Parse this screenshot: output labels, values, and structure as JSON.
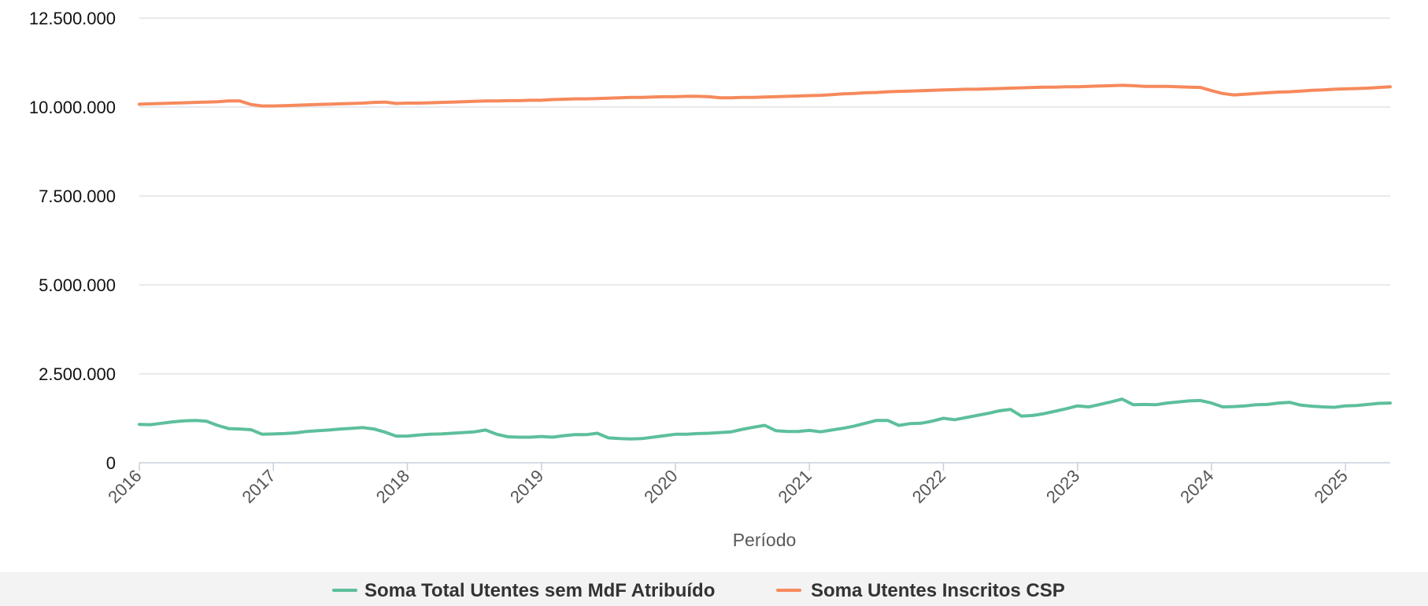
{
  "chart_data": {
    "type": "line",
    "title": "",
    "xlabel": "Período",
    "ylabel": "",
    "x_start": "2016-01",
    "x_end": "2025-05",
    "x_tick_labels": [
      "2016",
      "2017",
      "2018",
      "2019",
      "2020",
      "2021",
      "2022",
      "2023",
      "2024",
      "2025"
    ],
    "ylim": [
      0,
      12500000
    ],
    "y_tick_values": [
      0,
      2500000,
      5000000,
      7500000,
      10000000,
      12500000
    ],
    "y_tick_labels": [
      "0",
      "2.500.000",
      "5.000.000",
      "7.500.000",
      "10.000.000",
      "12.500.000"
    ],
    "grid": true,
    "legend_position": "bottom-center",
    "series": [
      {
        "name": "Soma Total Utentes sem MdF Atribuído",
        "color": "#5dbf9b",
        "points": [
          [
            "2016-01",
            1080000
          ],
          [
            "2016-02",
            1070000
          ],
          [
            "2016-03",
            1110000
          ],
          [
            "2016-04",
            1150000
          ],
          [
            "2016-05",
            1180000
          ],
          [
            "2016-06",
            1190000
          ],
          [
            "2016-07",
            1170000
          ],
          [
            "2016-08",
            1050000
          ],
          [
            "2016-09",
            960000
          ],
          [
            "2016-10",
            950000
          ],
          [
            "2016-11",
            930000
          ],
          [
            "2016-12",
            800000
          ],
          [
            "2017-01",
            810000
          ],
          [
            "2017-02",
            820000
          ],
          [
            "2017-03",
            840000
          ],
          [
            "2017-04",
            880000
          ],
          [
            "2017-05",
            900000
          ],
          [
            "2017-06",
            920000
          ],
          [
            "2017-07",
            950000
          ],
          [
            "2017-08",
            970000
          ],
          [
            "2017-09",
            990000
          ],
          [
            "2017-10",
            950000
          ],
          [
            "2017-11",
            860000
          ],
          [
            "2017-12",
            750000
          ],
          [
            "2018-01",
            750000
          ],
          [
            "2018-02",
            780000
          ],
          [
            "2018-03",
            800000
          ],
          [
            "2018-04",
            810000
          ],
          [
            "2018-05",
            830000
          ],
          [
            "2018-06",
            850000
          ],
          [
            "2018-07",
            870000
          ],
          [
            "2018-08",
            920000
          ],
          [
            "2018-09",
            800000
          ],
          [
            "2018-10",
            730000
          ],
          [
            "2018-11",
            720000
          ],
          [
            "2018-12",
            720000
          ],
          [
            "2019-01",
            740000
          ],
          [
            "2019-02",
            720000
          ],
          [
            "2019-03",
            760000
          ],
          [
            "2019-04",
            790000
          ],
          [
            "2019-05",
            790000
          ],
          [
            "2019-06",
            830000
          ],
          [
            "2019-07",
            700000
          ],
          [
            "2019-08",
            680000
          ],
          [
            "2019-09",
            670000
          ],
          [
            "2019-10",
            680000
          ],
          [
            "2019-11",
            720000
          ],
          [
            "2019-12",
            760000
          ],
          [
            "2020-01",
            800000
          ],
          [
            "2020-02",
            800000
          ],
          [
            "2020-03",
            820000
          ],
          [
            "2020-04",
            830000
          ],
          [
            "2020-05",
            850000
          ],
          [
            "2020-06",
            870000
          ],
          [
            "2020-07",
            940000
          ],
          [
            "2020-08",
            1000000
          ],
          [
            "2020-09",
            1050000
          ],
          [
            "2020-10",
            900000
          ],
          [
            "2020-11",
            880000
          ],
          [
            "2020-12",
            880000
          ],
          [
            "2021-01",
            910000
          ],
          [
            "2021-02",
            870000
          ],
          [
            "2021-03",
            920000
          ],
          [
            "2021-04",
            970000
          ],
          [
            "2021-05",
            1030000
          ],
          [
            "2021-06",
            1110000
          ],
          [
            "2021-07",
            1190000
          ],
          [
            "2021-08",
            1190000
          ],
          [
            "2021-09",
            1050000
          ],
          [
            "2021-10",
            1100000
          ],
          [
            "2021-11",
            1110000
          ],
          [
            "2021-12",
            1170000
          ],
          [
            "2022-01",
            1250000
          ],
          [
            "2022-02",
            1210000
          ],
          [
            "2022-03",
            1270000
          ],
          [
            "2022-04",
            1330000
          ],
          [
            "2022-05",
            1390000
          ],
          [
            "2022-06",
            1460000
          ],
          [
            "2022-07",
            1500000
          ],
          [
            "2022-08",
            1310000
          ],
          [
            "2022-09",
            1330000
          ],
          [
            "2022-10",
            1380000
          ],
          [
            "2022-11",
            1450000
          ],
          [
            "2022-12",
            1520000
          ],
          [
            "2023-01",
            1600000
          ],
          [
            "2023-02",
            1570000
          ],
          [
            "2023-03",
            1640000
          ],
          [
            "2023-04",
            1710000
          ],
          [
            "2023-05",
            1790000
          ],
          [
            "2023-06",
            1630000
          ],
          [
            "2023-07",
            1640000
          ],
          [
            "2023-08",
            1630000
          ],
          [
            "2023-09",
            1680000
          ],
          [
            "2023-10",
            1710000
          ],
          [
            "2023-11",
            1740000
          ],
          [
            "2023-12",
            1750000
          ],
          [
            "2024-01",
            1680000
          ],
          [
            "2024-02",
            1570000
          ],
          [
            "2024-03",
            1580000
          ],
          [
            "2024-04",
            1600000
          ],
          [
            "2024-05",
            1630000
          ],
          [
            "2024-06",
            1640000
          ],
          [
            "2024-07",
            1680000
          ],
          [
            "2024-08",
            1700000
          ],
          [
            "2024-09",
            1620000
          ],
          [
            "2024-10",
            1590000
          ],
          [
            "2024-11",
            1570000
          ],
          [
            "2024-12",
            1560000
          ],
          [
            "2025-01",
            1600000
          ],
          [
            "2025-02",
            1610000
          ],
          [
            "2025-03",
            1640000
          ],
          [
            "2025-04",
            1670000
          ],
          [
            "2025-05",
            1680000
          ]
        ]
      },
      {
        "name": "Soma Utentes Inscritos CSP",
        "color": "#f6895c",
        "points": [
          [
            "2016-01",
            10080000
          ],
          [
            "2016-02",
            10090000
          ],
          [
            "2016-03",
            10100000
          ],
          [
            "2016-04",
            10110000
          ],
          [
            "2016-05",
            10120000
          ],
          [
            "2016-06",
            10130000
          ],
          [
            "2016-07",
            10140000
          ],
          [
            "2016-08",
            10150000
          ],
          [
            "2016-09",
            10170000
          ],
          [
            "2016-10",
            10170000
          ],
          [
            "2016-11",
            10070000
          ],
          [
            "2016-12",
            10030000
          ],
          [
            "2017-01",
            10030000
          ],
          [
            "2017-02",
            10040000
          ],
          [
            "2017-03",
            10050000
          ],
          [
            "2017-04",
            10060000
          ],
          [
            "2017-05",
            10070000
          ],
          [
            "2017-06",
            10080000
          ],
          [
            "2017-07",
            10090000
          ],
          [
            "2017-08",
            10100000
          ],
          [
            "2017-09",
            10110000
          ],
          [
            "2017-10",
            10130000
          ],
          [
            "2017-11",
            10140000
          ],
          [
            "2017-12",
            10100000
          ],
          [
            "2018-01",
            10110000
          ],
          [
            "2018-02",
            10110000
          ],
          [
            "2018-03",
            10120000
          ],
          [
            "2018-04",
            10130000
          ],
          [
            "2018-05",
            10140000
          ],
          [
            "2018-06",
            10150000
          ],
          [
            "2018-07",
            10160000
          ],
          [
            "2018-08",
            10170000
          ],
          [
            "2018-09",
            10170000
          ],
          [
            "2018-10",
            10180000
          ],
          [
            "2018-11",
            10180000
          ],
          [
            "2018-12",
            10190000
          ],
          [
            "2019-01",
            10190000
          ],
          [
            "2019-02",
            10210000
          ],
          [
            "2019-03",
            10220000
          ],
          [
            "2019-04",
            10230000
          ],
          [
            "2019-05",
            10230000
          ],
          [
            "2019-06",
            10240000
          ],
          [
            "2019-07",
            10250000
          ],
          [
            "2019-08",
            10260000
          ],
          [
            "2019-09",
            10270000
          ],
          [
            "2019-10",
            10270000
          ],
          [
            "2019-11",
            10280000
          ],
          [
            "2019-12",
            10290000
          ],
          [
            "2020-01",
            10290000
          ],
          [
            "2020-02",
            10300000
          ],
          [
            "2020-03",
            10300000
          ],
          [
            "2020-04",
            10290000
          ],
          [
            "2020-05",
            10260000
          ],
          [
            "2020-06",
            10260000
          ],
          [
            "2020-07",
            10270000
          ],
          [
            "2020-08",
            10270000
          ],
          [
            "2020-09",
            10280000
          ],
          [
            "2020-10",
            10290000
          ],
          [
            "2020-11",
            10300000
          ],
          [
            "2020-12",
            10310000
          ],
          [
            "2021-01",
            10320000
          ],
          [
            "2021-02",
            10330000
          ],
          [
            "2021-03",
            10350000
          ],
          [
            "2021-04",
            10370000
          ],
          [
            "2021-05",
            10380000
          ],
          [
            "2021-06",
            10400000
          ],
          [
            "2021-07",
            10410000
          ],
          [
            "2021-08",
            10430000
          ],
          [
            "2021-09",
            10440000
          ],
          [
            "2021-10",
            10450000
          ],
          [
            "2021-11",
            10460000
          ],
          [
            "2021-12",
            10470000
          ],
          [
            "2022-01",
            10480000
          ],
          [
            "2022-02",
            10490000
          ],
          [
            "2022-03",
            10500000
          ],
          [
            "2022-04",
            10500000
          ],
          [
            "2022-05",
            10510000
          ],
          [
            "2022-06",
            10520000
          ],
          [
            "2022-07",
            10530000
          ],
          [
            "2022-08",
            10540000
          ],
          [
            "2022-09",
            10550000
          ],
          [
            "2022-10",
            10560000
          ],
          [
            "2022-11",
            10560000
          ],
          [
            "2022-12",
            10570000
          ],
          [
            "2023-01",
            10570000
          ],
          [
            "2023-02",
            10580000
          ],
          [
            "2023-03",
            10590000
          ],
          [
            "2023-04",
            10600000
          ],
          [
            "2023-05",
            10610000
          ],
          [
            "2023-06",
            10600000
          ],
          [
            "2023-07",
            10580000
          ],
          [
            "2023-08",
            10580000
          ],
          [
            "2023-09",
            10580000
          ],
          [
            "2023-10",
            10570000
          ],
          [
            "2023-11",
            10560000
          ],
          [
            "2023-12",
            10550000
          ],
          [
            "2024-01",
            10460000
          ],
          [
            "2024-02",
            10380000
          ],
          [
            "2024-03",
            10340000
          ],
          [
            "2024-04",
            10360000
          ],
          [
            "2024-05",
            10380000
          ],
          [
            "2024-06",
            10400000
          ],
          [
            "2024-07",
            10420000
          ],
          [
            "2024-08",
            10430000
          ],
          [
            "2024-09",
            10450000
          ],
          [
            "2024-10",
            10470000
          ],
          [
            "2024-11",
            10480000
          ],
          [
            "2024-12",
            10500000
          ],
          [
            "2025-01",
            10510000
          ],
          [
            "2025-02",
            10520000
          ],
          [
            "2025-03",
            10530000
          ],
          [
            "2025-04",
            10550000
          ],
          [
            "2025-05",
            10570000
          ]
        ]
      }
    ]
  }
}
